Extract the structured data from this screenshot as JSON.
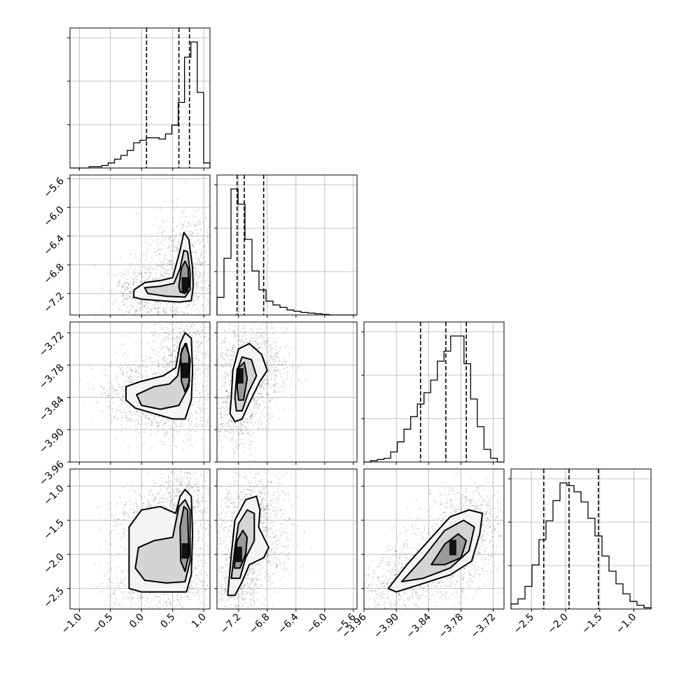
{
  "chart_data": {
    "type": "corner",
    "grid": true,
    "params": [
      {
        "id": "p0",
        "range": [
          -1.15,
          1.1
        ],
        "ticks": [
          -1.0,
          -0.5,
          0.0,
          0.5,
          1.0
        ],
        "tick_labels": [
          "−1.0",
          "−0.5",
          "0.0",
          "0.5",
          "1.0"
        ],
        "quantiles": [
          0.08,
          0.6,
          0.77
        ],
        "hist": [
          0.0,
          0.0,
          0.0,
          0.01,
          0.01,
          0.02,
          0.04,
          0.07,
          0.1,
          0.14,
          0.2,
          0.22,
          0.24,
          0.24,
          0.23,
          0.27,
          0.34,
          0.52,
          0.88,
          1.0,
          0.6,
          0.04
        ]
      },
      {
        "id": "p1",
        "range": [
          -7.5,
          -5.55
        ],
        "ticks": [
          -7.2,
          -6.8,
          -6.4,
          -6.0,
          -5.6
        ],
        "tick_labels": [
          "−7.2",
          "−6.8",
          "−6.4",
          "−6.0",
          "−5.6"
        ],
        "quantiles": [
          -7.22,
          -7.12,
          -6.85
        ],
        "hist": [
          0.14,
          0.45,
          1.0,
          0.88,
          0.6,
          0.35,
          0.2,
          0.11,
          0.08,
          0.06,
          0.04,
          0.03,
          0.02,
          0.015,
          0.01,
          0.005,
          0.0,
          0.0,
          0.0,
          0.0
        ]
      },
      {
        "id": "p2",
        "range": [
          -3.96,
          -3.7
        ],
        "ticks": [
          -3.96,
          -3.9,
          -3.84,
          -3.78,
          -3.72
        ],
        "tick_labels": [
          "−3.96",
          "−3.90",
          "−3.84",
          "−3.78",
          "−3.72"
        ],
        "quantiles": [
          -3.855,
          -3.808,
          -3.77
        ],
        "hist": [
          0.0,
          0.01,
          0.02,
          0.03,
          0.08,
          0.16,
          0.26,
          0.36,
          0.46,
          0.55,
          0.65,
          0.8,
          0.88,
          1.0,
          1.0,
          0.78,
          0.5,
          0.28,
          0.1,
          0.03,
          0.0
        ]
      },
      {
        "id": "p3",
        "range": [
          -2.8,
          -0.75
        ],
        "ticks": [
          -2.5,
          -2.0,
          -1.5,
          -1.0
        ],
        "tick_labels": [
          "−2.5",
          "−2.0",
          "−1.5",
          "−1.0"
        ],
        "quantiles": [
          -2.32,
          -1.95,
          -1.52
        ],
        "hist": [
          0.04,
          0.08,
          0.18,
          0.35,
          0.55,
          0.7,
          0.86,
          1.0,
          0.98,
          0.93,
          0.85,
          0.72,
          0.58,
          0.42,
          0.3,
          0.2,
          0.12,
          0.06,
          0.03,
          0.01
        ]
      }
    ],
    "scatter": [
      {
        "pair": [
          0,
          1
        ],
        "peak": [
          0.7,
          -7.08
        ],
        "contours": [
          [
            [
              -0.12,
              -7.15
            ],
            [
              0.05,
              -7.05
            ],
            [
              0.3,
              -7.02
            ],
            [
              0.5,
              -6.98
            ],
            [
              0.62,
              -6.6
            ],
            [
              0.68,
              -6.35
            ],
            [
              0.76,
              -6.45
            ],
            [
              0.82,
              -6.85
            ],
            [
              0.83,
              -7.1
            ],
            [
              0.8,
              -7.3
            ],
            [
              0.6,
              -7.32
            ],
            [
              0.3,
              -7.3
            ],
            [
              0.0,
              -7.28
            ],
            [
              -0.13,
              -7.25
            ]
          ],
          [
            [
              0.05,
              -7.12
            ],
            [
              0.3,
              -7.1
            ],
            [
              0.52,
              -7.06
            ],
            [
              0.62,
              -6.85
            ],
            [
              0.68,
              -6.6
            ],
            [
              0.74,
              -6.62
            ],
            [
              0.78,
              -6.9
            ],
            [
              0.78,
              -7.15
            ],
            [
              0.7,
              -7.25
            ],
            [
              0.4,
              -7.24
            ],
            [
              0.1,
              -7.2
            ]
          ],
          [
            [
              0.6,
              -7.1
            ],
            [
              0.64,
              -6.85
            ],
            [
              0.7,
              -6.75
            ],
            [
              0.75,
              -6.85
            ],
            [
              0.76,
              -7.1
            ],
            [
              0.7,
              -7.2
            ],
            [
              0.62,
              -7.18
            ]
          ]
        ]
      },
      {
        "pair": [
          0,
          2
        ],
        "peak": [
          0.7,
          -3.79
        ],
        "contours": [
          [
            [
              -0.25,
              -3.82
            ],
            [
              0.0,
              -3.81
            ],
            [
              0.35,
              -3.8
            ],
            [
              0.55,
              -3.785
            ],
            [
              0.62,
              -3.74
            ],
            [
              0.7,
              -3.72
            ],
            [
              0.8,
              -3.73
            ],
            [
              0.82,
              -3.79
            ],
            [
              0.8,
              -3.845
            ],
            [
              0.7,
              -3.88
            ],
            [
              0.5,
              -3.88
            ],
            [
              0.2,
              -3.87
            ],
            [
              -0.1,
              -3.86
            ],
            [
              -0.25,
              -3.845
            ]
          ],
          [
            [
              -0.08,
              -3.835
            ],
            [
              0.2,
              -3.82
            ],
            [
              0.45,
              -3.815
            ],
            [
              0.58,
              -3.8
            ],
            [
              0.65,
              -3.75
            ],
            [
              0.72,
              -3.74
            ],
            [
              0.78,
              -3.77
            ],
            [
              0.76,
              -3.82
            ],
            [
              0.6,
              -3.855
            ],
            [
              0.3,
              -3.862
            ],
            [
              0.0,
              -3.855
            ]
          ],
          [
            [
              0.63,
              -3.76
            ],
            [
              0.7,
              -3.74
            ],
            [
              0.76,
              -3.76
            ],
            [
              0.77,
              -3.81
            ],
            [
              0.7,
              -3.83
            ],
            [
              0.64,
              -3.81
            ]
          ]
        ]
      },
      {
        "pair": [
          1,
          2
        ],
        "peak": [
          -7.18,
          -3.8
        ],
        "contours": [
          [
            [
              -7.3,
              -3.84
            ],
            [
              -7.28,
              -3.79
            ],
            [
              -7.2,
              -3.75
            ],
            [
              -7.05,
              -3.74
            ],
            [
              -6.88,
              -3.76
            ],
            [
              -6.8,
              -3.79
            ],
            [
              -6.9,
              -3.81
            ],
            [
              -7.05,
              -3.85
            ],
            [
              -7.15,
              -3.88
            ],
            [
              -7.25,
              -3.885
            ],
            [
              -7.32,
              -3.87
            ]
          ],
          [
            [
              -7.25,
              -3.84
            ],
            [
              -7.22,
              -3.79
            ],
            [
              -7.15,
              -3.765
            ],
            [
              -7.02,
              -3.77
            ],
            [
              -6.95,
              -3.8
            ],
            [
              -7.06,
              -3.83
            ],
            [
              -7.15,
              -3.865
            ],
            [
              -7.23,
              -3.865
            ]
          ],
          [
            [
              -7.22,
              -3.82
            ],
            [
              -7.2,
              -3.785
            ],
            [
              -7.12,
              -3.775
            ],
            [
              -7.08,
              -3.805
            ],
            [
              -7.13,
              -3.845
            ],
            [
              -7.2,
              -3.845
            ]
          ]
        ]
      },
      {
        "pair": [
          0,
          3
        ],
        "peak": [
          0.7,
          -1.95
        ],
        "contours": [
          [
            [
              -0.2,
              -2.5
            ],
            [
              -0.2,
              -1.6
            ],
            [
              0.0,
              -1.35
            ],
            [
              0.3,
              -1.3
            ],
            [
              0.55,
              -1.4
            ],
            [
              0.62,
              -1.15
            ],
            [
              0.7,
              -1.05
            ],
            [
              0.8,
              -1.15
            ],
            [
              0.82,
              -1.7
            ],
            [
              0.8,
              -2.3
            ],
            [
              0.72,
              -2.55
            ],
            [
              0.4,
              -2.55
            ],
            [
              0.0,
              -2.55
            ]
          ],
          [
            [
              -0.1,
              -2.2
            ],
            [
              -0.05,
              -1.9
            ],
            [
              0.2,
              -1.8
            ],
            [
              0.5,
              -1.75
            ],
            [
              0.6,
              -1.3
            ],
            [
              0.7,
              -1.2
            ],
            [
              0.78,
              -1.35
            ],
            [
              0.78,
              -2.1
            ],
            [
              0.7,
              -2.4
            ],
            [
              0.4,
              -2.42
            ],
            [
              0.05,
              -2.38
            ]
          ],
          [
            [
              0.62,
              -1.6
            ],
            [
              0.68,
              -1.3
            ],
            [
              0.74,
              -1.35
            ],
            [
              0.76,
              -2.0
            ],
            [
              0.7,
              -2.25
            ],
            [
              0.63,
              -2.1
            ]
          ]
        ]
      },
      {
        "pair": [
          1,
          3
        ],
        "peak": [
          -7.2,
          -2.0
        ],
        "contours": [
          [
            [
              -7.35,
              -2.6
            ],
            [
              -7.3,
              -2.0
            ],
            [
              -7.25,
              -1.5
            ],
            [
              -7.1,
              -1.2
            ],
            [
              -6.95,
              -1.15
            ],
            [
              -6.9,
              -1.35
            ],
            [
              -6.92,
              -1.6
            ],
            [
              -6.78,
              -1.9
            ],
            [
              -6.85,
              -2.05
            ],
            [
              -7.05,
              -2.15
            ],
            [
              -7.15,
              -2.4
            ],
            [
              -7.25,
              -2.6
            ]
          ],
          [
            [
              -7.3,
              -2.35
            ],
            [
              -7.25,
              -1.9
            ],
            [
              -7.2,
              -1.55
            ],
            [
              -7.08,
              -1.35
            ],
            [
              -6.98,
              -1.4
            ],
            [
              -6.98,
              -1.8
            ],
            [
              -7.1,
              -2.05
            ],
            [
              -7.18,
              -2.35
            ]
          ],
          [
            [
              -7.26,
              -2.2
            ],
            [
              -7.22,
              -1.8
            ],
            [
              -7.14,
              -1.65
            ],
            [
              -7.08,
              -1.75
            ],
            [
              -7.1,
              -2.0
            ],
            [
              -7.18,
              -2.2
            ]
          ]
        ]
      },
      {
        "pair": [
          2,
          3
        ],
        "peak": [
          -3.795,
          -1.9
        ],
        "contours": [
          [
            [
              -3.915,
              -2.5
            ],
            [
              -3.88,
              -2.15
            ],
            [
              -3.84,
              -1.8
            ],
            [
              -3.8,
              -1.45
            ],
            [
              -3.765,
              -1.35
            ],
            [
              -3.74,
              -1.4
            ],
            [
              -3.745,
              -1.7
            ],
            [
              -3.76,
              -2.1
            ],
            [
              -3.8,
              -2.3
            ],
            [
              -3.86,
              -2.45
            ],
            [
              -3.9,
              -2.55
            ]
          ],
          [
            [
              -3.89,
              -2.4
            ],
            [
              -3.85,
              -2.05
            ],
            [
              -3.81,
              -1.65
            ],
            [
              -3.775,
              -1.5
            ],
            [
              -3.755,
              -1.6
            ],
            [
              -3.765,
              -1.95
            ],
            [
              -3.8,
              -2.2
            ],
            [
              -3.85,
              -2.35
            ]
          ],
          [
            [
              -3.835,
              -2.15
            ],
            [
              -3.81,
              -1.85
            ],
            [
              -3.785,
              -1.7
            ],
            [
              -3.77,
              -1.8
            ],
            [
              -3.78,
              -2.05
            ],
            [
              -3.81,
              -2.15
            ]
          ]
        ]
      }
    ]
  }
}
